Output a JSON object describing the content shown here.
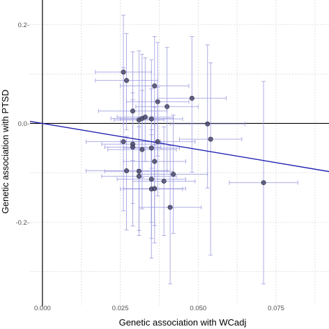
{
  "chart_data": {
    "type": "scatter",
    "title": "",
    "xlabel": "Genetic association with WCadj",
    "ylabel": "Genetic association with PTSD",
    "xlim": [
      -0.004,
      0.092
    ],
    "ylim": [
      -0.37,
      0.25
    ],
    "x_ticks": [
      0.0,
      0.025,
      0.05,
      0.075
    ],
    "x_tick_labels": [
      "0.000",
      "0.025",
      "0.050",
      "0.075"
    ],
    "y_ticks": [
      -0.2,
      0.0,
      0.2
    ],
    "y_tick_labels": [
      "-0.2-",
      "0.0-",
      "0.2-"
    ],
    "grid": true,
    "reference_lines": {
      "vertical_x": 0.0,
      "horizontal_y": 0.0
    },
    "regression_line": {
      "intercept": 0.0,
      "slope": -1.06
    },
    "colors": {
      "points": "#4b4b6e",
      "error_bars": "#9a9ae0",
      "regression": "#2020b0",
      "grid": "#d9d9d9"
    },
    "points": [
      {
        "x": 0.026,
        "y": 0.104,
        "x_err": 0.009,
        "y_err_low": 0.105,
        "y_err_high": 0.115
      },
      {
        "x": 0.027,
        "y": 0.087,
        "x_err": 0.01,
        "y_err_low": 0.1,
        "y_err_high": 0.095
      },
      {
        "x": 0.026,
        "y": -0.037,
        "x_err": 0.012,
        "y_err_low": 0.14,
        "y_err_high": 0.15
      },
      {
        "x": 0.027,
        "y": -0.096,
        "x_err": 0.013,
        "y_err_low": 0.12,
        "y_err_high": 0.07
      },
      {
        "x": 0.029,
        "y": 0.025,
        "x_err": 0.011,
        "y_err_low": 0.1,
        "y_err_high": 0.12
      },
      {
        "x": 0.029,
        "y": -0.042,
        "x_err": 0.01,
        "y_err_low": 0.12,
        "y_err_high": 0.09
      },
      {
        "x": 0.029,
        "y": -0.048,
        "x_err": 0.009,
        "y_err_low": 0.16,
        "y_err_high": 0.11
      },
      {
        "x": 0.031,
        "y": 0.007,
        "x_err": 0.008,
        "y_err_low": 0.1,
        "y_err_high": 0.14
      },
      {
        "x": 0.032,
        "y": 0.01,
        "x_err": 0.01,
        "y_err_low": 0.12,
        "y_err_high": 0.13
      },
      {
        "x": 0.033,
        "y": 0.013,
        "x_err": 0.009,
        "y_err_low": 0.09,
        "y_err_high": 0.12
      },
      {
        "x": 0.031,
        "y": -0.097,
        "x_err": 0.011,
        "y_err_low": 0.13,
        "y_err_high": 0.09
      },
      {
        "x": 0.031,
        "y": -0.107,
        "x_err": 0.012,
        "y_err_low": 0.11,
        "y_err_high": 0.12
      },
      {
        "x": 0.032,
        "y": -0.053,
        "x_err": 0.011,
        "y_err_low": 0.12,
        "y_err_high": 0.12
      },
      {
        "x": 0.035,
        "y": 0.009,
        "x_err": 0.01,
        "y_err_low": 0.1,
        "y_err_high": 0.12
      },
      {
        "x": 0.035,
        "y": -0.05,
        "x_err": 0.009,
        "y_err_low": 0.15,
        "y_err_high": 0.12
      },
      {
        "x": 0.035,
        "y": -0.113,
        "x_err": 0.011,
        "y_err_low": 0.12,
        "y_err_high": 0.1
      },
      {
        "x": 0.035,
        "y": -0.133,
        "x_err": 0.01,
        "y_err_low": 0.14,
        "y_err_high": 0.11
      },
      {
        "x": 0.036,
        "y": -0.132,
        "x_err": 0.01,
        "y_err_low": 0.11,
        "y_err_high": 0.13
      },
      {
        "x": 0.036,
        "y": 0.076,
        "x_err": 0.011,
        "y_err_low": 0.12,
        "y_err_high": 0.1
      },
      {
        "x": 0.037,
        "y": 0.044,
        "x_err": 0.01,
        "y_err_low": 0.11,
        "y_err_high": 0.12
      },
      {
        "x": 0.036,
        "y": -0.077,
        "x_err": 0.01,
        "y_err_low": 0.13,
        "y_err_high": 0.11
      },
      {
        "x": 0.037,
        "y": -0.037,
        "x_err": 0.012,
        "y_err_low": 0.11,
        "y_err_high": 0.11
      },
      {
        "x": 0.04,
        "y": 0.034,
        "x_err": 0.01,
        "y_err_low": 0.13,
        "y_err_high": 0.12
      },
      {
        "x": 0.039,
        "y": -0.117,
        "x_err": 0.01,
        "y_err_low": 0.11,
        "y_err_high": 0.11
      },
      {
        "x": 0.042,
        "y": -0.103,
        "x_err": 0.011,
        "y_err_low": 0.12,
        "y_err_high": 0.12
      },
      {
        "x": 0.041,
        "y": -0.17,
        "x_err": 0.01,
        "y_err_low": 0.155,
        "y_err_high": 0.125
      },
      {
        "x": 0.048,
        "y": 0.051,
        "x_err": 0.011,
        "y_err_low": 0.15,
        "y_err_high": 0.125
      },
      {
        "x": 0.053,
        "y": -0.001,
        "x_err": 0.012,
        "y_err_low": 0.13,
        "y_err_high": 0.16
      },
      {
        "x": 0.054,
        "y": -0.032,
        "x_err": 0.01,
        "y_err_low": 0.235,
        "y_err_high": 0.155
      },
      {
        "x": 0.071,
        "y": -0.12,
        "x_err": 0.011,
        "y_err_low": 0.205,
        "y_err_high": 0.205
      }
    ]
  }
}
